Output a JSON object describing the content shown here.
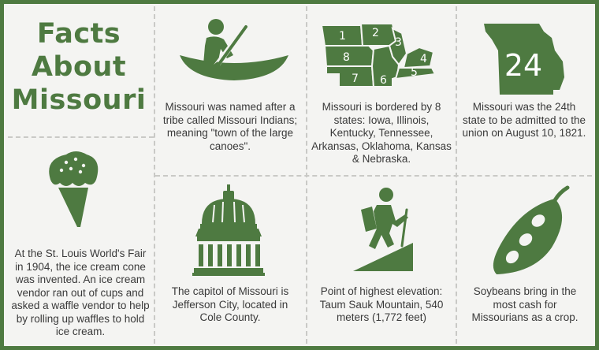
{
  "title": {
    "line1": "Facts",
    "line2": "About",
    "line3": "Missouri"
  },
  "facts": {
    "name_origin": "Missouri was named after a tribe called Missouri Indians; meaning \"town of the large canoes\".",
    "borders": "Missouri is bordered by 8 states: Iowa, Illinois, Kentucky, Tennessee, Arkansas, Oklahoma, Kansas & Nebraska.",
    "statehood": "Missouri was the 24th state to be admitted to the union on August 10, 1821.",
    "ice_cream": "At the St. Louis World's Fair in 1904, the ice cream cone was invented. An ice cream vendor ran out of cups and asked a waffle vendor to help by rolling up waffles to hold ice cream.",
    "capitol": "The capitol of Missouri is Jefferson City, located in Cole County.",
    "elevation": "Point of highest elevation: Taum Sauk Mountain, 540 meters (1,772 feet)",
    "soybeans": "Soybeans bring in the most cash for Missourians as a crop."
  },
  "map_labels": [
    "1",
    "2",
    "3",
    "4",
    "5",
    "6",
    "7",
    "8"
  ],
  "state_number": "24",
  "colors": {
    "accent": "#4e7a41",
    "text": "#3a3a3a",
    "background": "#f4f4f2"
  },
  "icons": [
    "canoe-icon",
    "border-states-map-icon",
    "missouri-state-icon",
    "ice-cream-cone-icon",
    "capitol-dome-icon",
    "hiker-icon",
    "soybean-pod-icon"
  ]
}
